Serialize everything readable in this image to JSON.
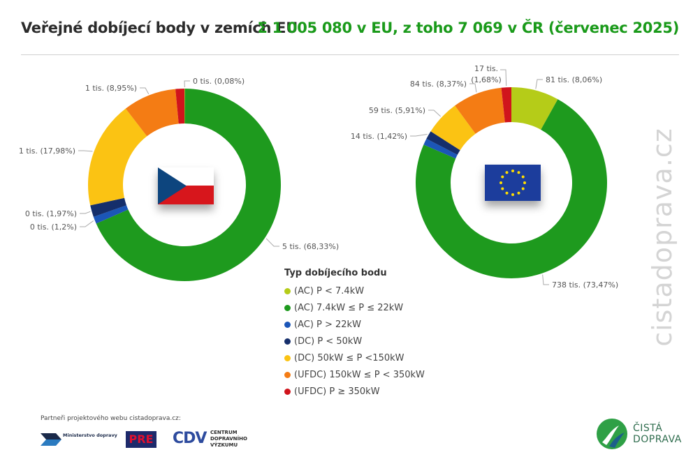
{
  "header": {
    "title": "Veřejné dobíjecí body v zemích EU",
    "summary": "Σ 1 005 080 v EU, z toho 7 069 v ČR (červenec 2025)"
  },
  "chart_data": [
    {
      "type": "pie",
      "region": "ČR",
      "flag": "czech-flag",
      "categories": [
        "(AC) P < 7.4kW",
        "(AC) 7.4kW ≤ P ≤ 22kW",
        "(AC) P > 22kW",
        "(DC) P < 50kW",
        "(DC) 50kW ≤ P <150kW",
        "(UFDC) 150kW ≤ P < 350kW",
        "(UFDC) P ≥ 350kW"
      ],
      "values": [
        0.08,
        68.33,
        1.2,
        1.97,
        17.98,
        8.95,
        1.49
      ],
      "data_labels": [
        "0 tis. (0,08%)",
        "5 tis. (68,33%)",
        "0 tis. (1,2%)",
        "0 tis. (1,97%)",
        "1 tis. (17,98%)",
        "1 tis. (8,95%)",
        ""
      ]
    },
    {
      "type": "pie",
      "region": "EU",
      "flag": "eu-flag",
      "categories": [
        "(AC) P < 7.4kW",
        "(AC) 7.4kW ≤ P ≤ 22kW",
        "(AC) P > 22kW",
        "(DC) P < 50kW",
        "(DC) 50kW ≤ P <150kW",
        "(UFDC) 150kW ≤ P < 350kW",
        "(UFDC) P ≥ 350kW"
      ],
      "values": [
        8.06,
        73.47,
        1.09,
        1.42,
        5.91,
        8.37,
        1.68
      ],
      "data_labels": [
        "81 tis. (8,06%)",
        "738 tis. (73,47%)",
        "",
        "14 tis. (1,42%)",
        "59 tis. (5,91%)",
        "84 tis. (8,37%)",
        "17 tis. (1,68%)"
      ]
    }
  ],
  "colors": [
    "#b5cc18",
    "#1e9a1e",
    "#1b56b8",
    "#152e6b",
    "#fbc313",
    "#f47c14",
    "#d0141c"
  ],
  "legend": {
    "title": "Typ dobíjecího bodu",
    "items": [
      {
        "label": "(AC) P < 7.4kW",
        "color": "#b5cc18"
      },
      {
        "label": "(AC) 7.4kW ≤ P ≤ 22kW",
        "color": "#1e9a1e"
      },
      {
        "label": "(AC) P > 22kW",
        "color": "#1b56b8"
      },
      {
        "label": "(DC) P < 50kW",
        "color": "#152e6b"
      },
      {
        "label": "(DC) 50kW ≤ P <150kW",
        "color": "#fbc313"
      },
      {
        "label": "(UFDC) 150kW ≤ P < 350kW",
        "color": "#f47c14"
      },
      {
        "label": "(UFDC) P ≥ 350kW",
        "color": "#d0141c"
      }
    ]
  },
  "watermark": "cistadoprava.cz",
  "footer": {
    "partners_text": "Partneři projektového webu cistadoprava.cz:",
    "ministerstvo": "Ministerstvo dopravy",
    "pre": "PRE",
    "cdv_mark": "CDV",
    "cdv_lines": [
      "CENTRUM",
      "DOPRAVNÍHO",
      "VÝZKUMU"
    ],
    "cista_doprava": [
      "ČISTÁ",
      "DOPRAVA"
    ]
  }
}
